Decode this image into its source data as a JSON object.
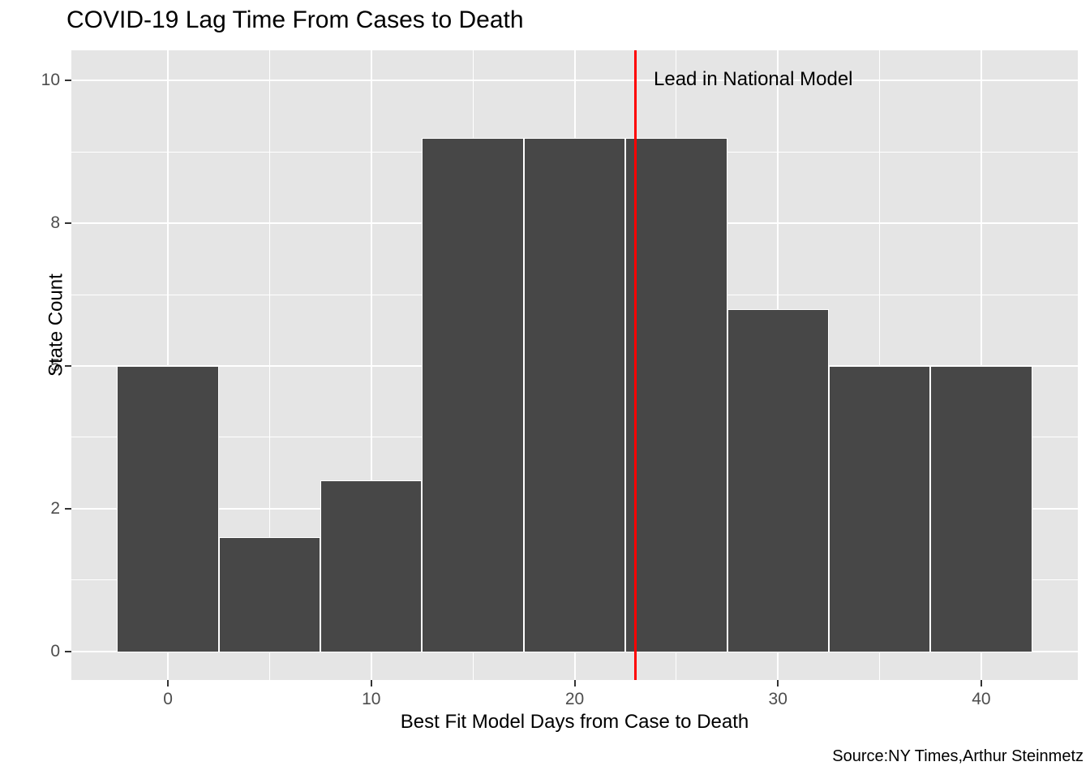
{
  "chart_data": {
    "type": "bar",
    "subtype": "histogram",
    "title": "COVID-19 Lag Time From Cases to Death",
    "xlabel": "Best Fit Model Days from Case to Death",
    "ylabel": "State Count",
    "caption": "Source:NY Times,Arthur Steinmetz",
    "bin_centers": [
      0,
      5,
      10,
      15,
      20,
      25,
      30,
      35,
      40
    ],
    "bin_width": 5,
    "counts": [
      5,
      2,
      3,
      9,
      9,
      9,
      6,
      5,
      5
    ],
    "x_ticks": [
      {
        "value": 0,
        "label": "0"
      },
      {
        "value": 10,
        "label": "10"
      },
      {
        "value": 20,
        "label": "20"
      },
      {
        "value": 30,
        "label": "30"
      },
      {
        "value": 40,
        "label": "40"
      }
    ],
    "y_ticks": [
      {
        "value": 0,
        "label": "0"
      },
      {
        "value": 2.5,
        "label": "2"
      },
      {
        "value": 5,
        "label": "5"
      },
      {
        "value": 7.5,
        "label": "8"
      },
      {
        "value": 10,
        "label": "10"
      }
    ],
    "xlim": [
      -4.75,
      44.75
    ],
    "ylim": [
      -0.5,
      10.53
    ],
    "vline": {
      "x": 23,
      "label": "Lead in National Model"
    },
    "legend": "none",
    "grid": {
      "major": true,
      "minor": true
    },
    "colors": {
      "bar_fill": "#474747",
      "bar_border": "#FFFFFF",
      "panel_background": "#E5E5E5",
      "gridline": "#FFFFFF",
      "vline": "#FF0000",
      "axis_tick_text": "#4D4D4D",
      "tick_mark": "#333333",
      "title_text": "#000000"
    }
  }
}
